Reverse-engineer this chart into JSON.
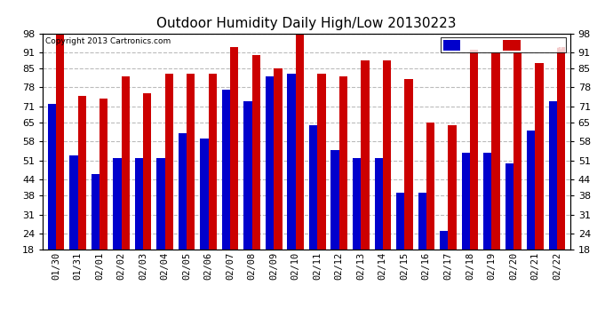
{
  "title": "Outdoor Humidity Daily High/Low 20130223",
  "copyright": "Copyright 2013 Cartronics.com",
  "dates": [
    "01/30",
    "01/31",
    "02/01",
    "02/02",
    "02/03",
    "02/04",
    "02/05",
    "02/06",
    "02/07",
    "02/08",
    "02/09",
    "02/10",
    "02/11",
    "02/12",
    "02/13",
    "02/14",
    "02/15",
    "02/16",
    "02/17",
    "02/18",
    "02/19",
    "02/20",
    "02/21",
    "02/22"
  ],
  "high": [
    99,
    75,
    74,
    82,
    76,
    83,
    83,
    83,
    93,
    90,
    85,
    99,
    83,
    82,
    88,
    88,
    81,
    65,
    64,
    92,
    91,
    91,
    87,
    93
  ],
  "low": [
    72,
    53,
    46,
    52,
    52,
    52,
    61,
    59,
    77,
    73,
    82,
    83,
    64,
    55,
    52,
    52,
    39,
    39,
    25,
    54,
    54,
    50,
    62,
    73
  ],
  "ymin": 18,
  "ymax": 98,
  "yticks": [
    18,
    24,
    31,
    38,
    44,
    51,
    58,
    65,
    71,
    78,
    85,
    91,
    98
  ],
  "background_color": "#ffffff",
  "low_color": "#0000cc",
  "high_color": "#cc0000",
  "grid_color": "#bbbbbb",
  "bar_width": 0.38
}
